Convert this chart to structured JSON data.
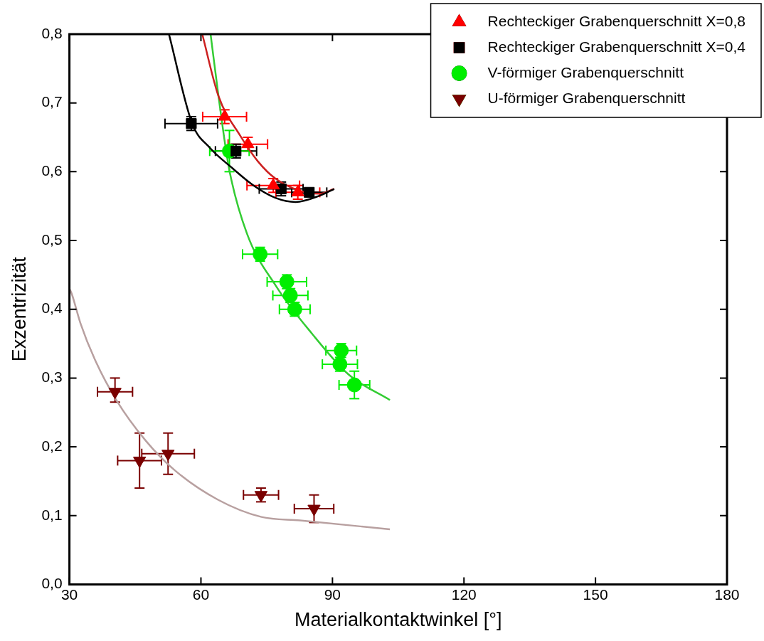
{
  "chart_data": {
    "type": "scatter",
    "xlabel": "Materialkontaktwinkel [°]",
    "ylabel": "Exzentrizität",
    "xlim": [
      30,
      180
    ],
    "xticks": [
      30,
      60,
      90,
      120,
      150,
      180
    ],
    "ylim": [
      0,
      0.8
    ],
    "yticks": [
      {
        "value": 0,
        "label": "0,0"
      },
      {
        "value": 0.1,
        "label": "0,1"
      },
      {
        "value": 0.2,
        "label": "0,2"
      },
      {
        "value": 0.3,
        "label": "0,3"
      },
      {
        "value": 0.4,
        "label": "0,4"
      },
      {
        "value": 0.5,
        "label": "0,5"
      },
      {
        "value": 0.6,
        "label": "0,6"
      },
      {
        "value": 0.7,
        "label": "0,7"
      },
      {
        "value": 0.8,
        "label": "0,8"
      }
    ],
    "grid": false,
    "legend": "top right",
    "series": [
      {
        "name": "Rechteckiger Grabenquerschnitt X=0,8",
        "color": "#ff0000",
        "marker": "triangle",
        "x": [
          65.4,
          70.7,
          76.5,
          82.1
        ],
        "values": [
          0.68,
          0.64,
          0.58,
          0.57
        ],
        "xerrors": [
          5,
          4.5,
          6,
          5
        ],
        "errors": [
          0.01,
          0.01,
          0.01,
          0.01
        ]
      },
      {
        "name": "Rechteckiger Grabenquerschnitt X=0,4",
        "color": "#000000",
        "marker": "square",
        "x": [
          57.8,
          68,
          78.3,
          84.7
        ],
        "values": [
          0.67,
          0.63,
          0.575,
          0.57
        ],
        "xerrors": [
          6,
          4.7,
          5,
          4
        ],
        "errors": [
          0.01,
          0.01,
          0.01,
          0.005
        ]
      },
      {
        "name": "V-förmiger Grabenquerschnitt",
        "color": "#00ee00",
        "marker": "circle",
        "x": [
          66.5,
          73.5,
          79.6,
          80.4,
          81.4,
          92,
          91.7,
          95
        ],
        "values": [
          0.63,
          0.48,
          0.44,
          0.42,
          0.4,
          0.34,
          0.32,
          0.29
        ],
        "xerrors": [
          4.5,
          4,
          4.5,
          4,
          3.5,
          3.5,
          4,
          3.5
        ],
        "errors": [
          0.03,
          0.01,
          0.01,
          0.01,
          0.01,
          0.01,
          0.01,
          0.02
        ]
      },
      {
        "name": "U-förmiger Grabenquerschnitt",
        "color": "#7a0000",
        "marker": "triangle-down",
        "x": [
          40.4,
          46,
          52.5,
          73.7,
          85.8
        ],
        "values": [
          0.28,
          0.18,
          0.19,
          0.13,
          0.11
        ],
        "xerrors": [
          4,
          5,
          6,
          4,
          4.5
        ],
        "errors": [
          [
            0.265,
            0.3
          ],
          0.04,
          0.03,
          0.01,
          0.02
        ]
      },
      {
        "type": "line",
        "color": "#000000",
        "x": [
          52.7,
          58,
          62,
          67.2,
          72,
          77,
          81.6,
          87,
          90.4
        ],
        "values": [
          0.8,
          0.67,
          0.635,
          0.605,
          0.58,
          0.562,
          0.556,
          0.565,
          0.575
        ]
      },
      {
        "type": "line",
        "color": "#cc2020",
        "x": [
          60.3,
          64,
          68.9,
          73,
          77,
          83.7,
          87,
          90.4
        ],
        "values": [
          0.8,
          0.71,
          0.653,
          0.615,
          0.59,
          0.57,
          0.568,
          0.575
        ]
      },
      {
        "type": "line",
        "color": "#33cc33",
        "x": [
          62.2,
          64,
          66.4,
          70.5,
          77.1,
          85.4,
          93.7,
          103.1
        ],
        "values": [
          0.8,
          0.71,
          0.605,
          0.51,
          0.434,
          0.364,
          0.305,
          0.268
        ]
      },
      {
        "type": "line",
        "color": "#b8a0a0",
        "x": [
          30,
          30.5,
          32.5,
          35.8,
          40.7,
          47.4,
          54,
          63.9,
          73.8,
          82.6,
          103.1
        ],
        "values": [
          0.43,
          0.423,
          0.38,
          0.327,
          0.268,
          0.209,
          0.166,
          0.123,
          0.098,
          0.093,
          0.08
        ]
      }
    ]
  }
}
